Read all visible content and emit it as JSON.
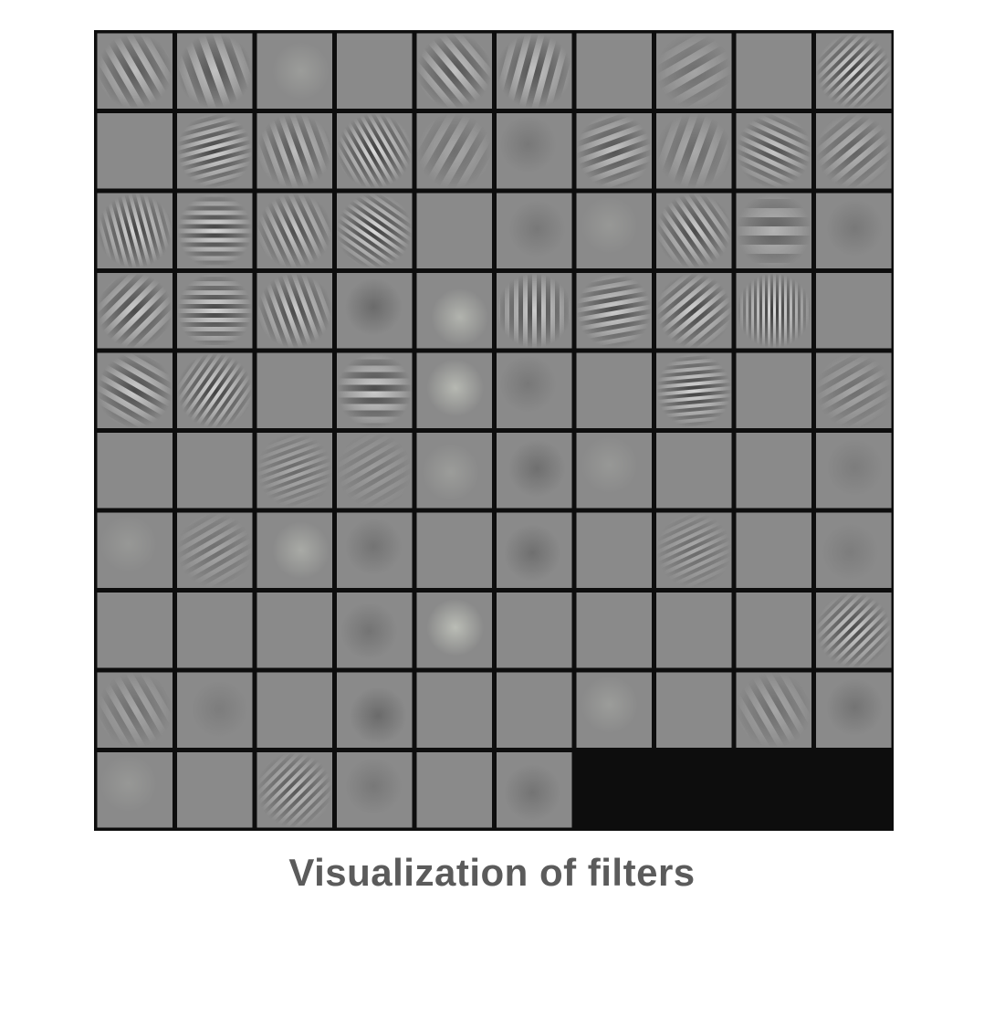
{
  "caption": "Visualization of filters",
  "image": {
    "description_free": true,
    "grid": {
      "rows": 10,
      "cols": 10,
      "filled_tiles": 96
    },
    "colors": {
      "background": "#ffffff",
      "grid_border": "#0d0d0d",
      "tile_base": "#8a8a8a",
      "caption": "#5b5b5b"
    },
    "tiles": [
      {
        "p": "stripe",
        "a": -30,
        "f": 14,
        "s": 0.55
      },
      {
        "p": "stripe",
        "a": -20,
        "f": 16,
        "s": 0.6
      },
      {
        "p": "blob",
        "s": 0.2
      },
      {
        "p": "flat"
      },
      {
        "p": "stripe",
        "a": -40,
        "f": 14,
        "s": 0.6
      },
      {
        "p": "stripe",
        "a": 15,
        "f": 14,
        "s": 0.6
      },
      {
        "p": "flat"
      },
      {
        "p": "stripe",
        "a": 60,
        "f": 16,
        "s": 0.3
      },
      {
        "p": "flat"
      },
      {
        "p": "stripe",
        "a": 45,
        "f": 8,
        "s": 0.8
      },
      {
        "p": "flat"
      },
      {
        "p": "stripe",
        "a": 75,
        "f": 9,
        "s": 0.75
      },
      {
        "p": "stripe",
        "a": -20,
        "f": 12,
        "s": 0.55
      },
      {
        "p": "stripe",
        "a": -30,
        "f": 8,
        "s": 0.85
      },
      {
        "p": "stripe",
        "a": 30,
        "f": 16,
        "s": 0.3
      },
      {
        "p": "blob",
        "s": 0.2
      },
      {
        "p": "stripe",
        "a": 70,
        "f": 12,
        "s": 0.6
      },
      {
        "p": "stripe",
        "a": 20,
        "f": 16,
        "s": 0.35
      },
      {
        "p": "stripe",
        "a": -65,
        "f": 10,
        "s": 0.65
      },
      {
        "p": "stripe",
        "a": 50,
        "f": 12,
        "s": 0.45
      },
      {
        "p": "stripe",
        "a": -15,
        "f": 8,
        "s": 0.8
      },
      {
        "p": "stripe",
        "a": 90,
        "f": 10,
        "s": 0.8
      },
      {
        "p": "stripe",
        "a": -25,
        "f": 10,
        "s": 0.65
      },
      {
        "p": "stripe",
        "a": -55,
        "f": 8,
        "s": 0.85
      },
      {
        "p": "flat"
      },
      {
        "p": "blob",
        "s": 0.2
      },
      {
        "p": "blob",
        "s": 0.15
      },
      {
        "p": "stripe",
        "a": -35,
        "f": 10,
        "s": 0.7
      },
      {
        "p": "stripe",
        "a": 90,
        "f": 20,
        "s": 0.45
      },
      {
        "p": "blob",
        "s": 0.2
      },
      {
        "p": "stripe",
        "a": 45,
        "f": 12,
        "s": 0.7
      },
      {
        "p": "stripe",
        "a": 90,
        "f": 10,
        "s": 0.75
      },
      {
        "p": "stripe",
        "a": -20,
        "f": 10,
        "s": 0.7
      },
      {
        "p": "blob",
        "s": 0.35
      },
      {
        "p": "blob",
        "s": 0.45
      },
      {
        "p": "stripe",
        "a": 0,
        "f": 10,
        "s": 0.7
      },
      {
        "p": "stripe",
        "a": 80,
        "f": 10,
        "s": 0.7
      },
      {
        "p": "stripe",
        "a": 50,
        "f": 10,
        "s": 0.75
      },
      {
        "p": "stripe",
        "a": 0,
        "f": 6,
        "s": 0.85
      },
      {
        "p": "flat"
      },
      {
        "p": "stripe",
        "a": -60,
        "f": 12,
        "s": 0.7
      },
      {
        "p": "stripe",
        "a": 35,
        "f": 8,
        "s": 0.8
      },
      {
        "p": "flat"
      },
      {
        "p": "stripe",
        "a": 90,
        "f": 14,
        "s": 0.7
      },
      {
        "p": "blob",
        "s": 0.5
      },
      {
        "p": "blob",
        "s": 0.2
      },
      {
        "p": "flat"
      },
      {
        "p": "stripe",
        "a": 85,
        "f": 8,
        "s": 0.8
      },
      {
        "p": "flat"
      },
      {
        "p": "stripe",
        "a": 60,
        "f": 12,
        "s": 0.3
      },
      {
        "p": "flat"
      },
      {
        "p": "flat"
      },
      {
        "p": "stripe",
        "a": 70,
        "f": 8,
        "s": 0.35
      },
      {
        "p": "stripe",
        "a": 60,
        "f": 10,
        "s": 0.2
      },
      {
        "p": "blob",
        "s": 0.2
      },
      {
        "p": "blob",
        "s": 0.3
      },
      {
        "p": "blob",
        "s": 0.15
      },
      {
        "p": "flat"
      },
      {
        "p": "flat"
      },
      {
        "p": "blob",
        "s": 0.15
      },
      {
        "p": "blob",
        "s": 0.15
      },
      {
        "p": "stripe",
        "a": 60,
        "f": 10,
        "s": 0.3
      },
      {
        "p": "blob",
        "s": 0.35
      },
      {
        "p": "blob",
        "s": 0.25
      },
      {
        "p": "flat"
      },
      {
        "p": "blob",
        "s": 0.3
      },
      {
        "p": "flat"
      },
      {
        "p": "stripe",
        "a": 65,
        "f": 8,
        "s": 0.35
      },
      {
        "p": "flat"
      },
      {
        "p": "blob",
        "s": 0.15
      },
      {
        "p": "flat"
      },
      {
        "p": "flat"
      },
      {
        "p": "flat"
      },
      {
        "p": "blob",
        "s": 0.25
      },
      {
        "p": "blob",
        "s": 0.55
      },
      {
        "p": "flat"
      },
      {
        "p": "flat"
      },
      {
        "p": "flat"
      },
      {
        "p": "flat"
      },
      {
        "p": "stripe",
        "a": 45,
        "f": 8,
        "s": 0.7
      },
      {
        "p": "stripe",
        "a": -30,
        "f": 14,
        "s": 0.3
      },
      {
        "p": "blob",
        "s": 0.15
      },
      {
        "p": "flat"
      },
      {
        "p": "blob",
        "s": 0.35
      },
      {
        "p": "flat"
      },
      {
        "p": "flat"
      },
      {
        "p": "blob",
        "s": 0.2
      },
      {
        "p": "flat"
      },
      {
        "p": "stripe",
        "a": -30,
        "f": 14,
        "s": 0.3
      },
      {
        "p": "blob",
        "s": 0.25
      },
      {
        "p": "blob",
        "s": 0.15
      },
      {
        "p": "flat"
      },
      {
        "p": "stripe",
        "a": 45,
        "f": 8,
        "s": 0.55
      },
      {
        "p": "blob",
        "s": 0.2
      },
      {
        "p": "flat"
      },
      {
        "p": "blob",
        "s": 0.25
      }
    ]
  }
}
